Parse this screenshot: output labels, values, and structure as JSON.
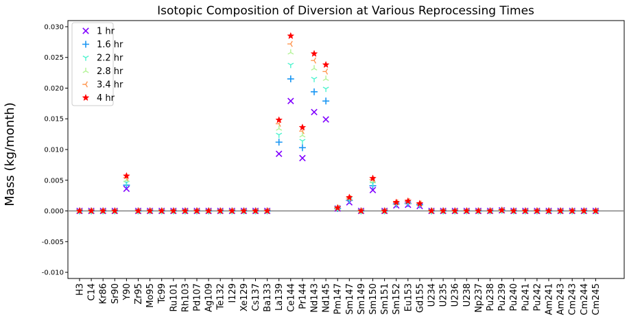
{
  "chart_data": {
    "type": "scatter",
    "title": "Isotopic Composition of Diversion at Various Reprocessing Times",
    "xlabel": "",
    "ylabel": "Mass (kg/month)",
    "ylim": [
      -0.011,
      0.031
    ],
    "yticks": [
      "-0.010",
      "-0.005",
      "0.000",
      "0.005",
      "0.010",
      "0.015",
      "0.020",
      "0.025",
      "0.030"
    ],
    "ytick_values": [
      -0.01,
      -0.005,
      0,
      0.005,
      0.01,
      0.015,
      0.02,
      0.025,
      0.03
    ],
    "zero_line": true,
    "grid": false,
    "legend_position": "upper-left",
    "categories": [
      "H3",
      "C14",
      "Kr86",
      "Sr90",
      "Y90",
      "Zr95",
      "Mo95",
      "Tc99",
      "Ru101",
      "Rh103",
      "Pd107",
      "Ag109",
      "Te132",
      "I129",
      "Xe129",
      "Cs137",
      "Ba133",
      "La139",
      "Ce144",
      "Pr144",
      "Nd143",
      "Nd145",
      "Pm147",
      "Sm147",
      "Sm149",
      "Sm150",
      "Sm151",
      "Sm152",
      "Eu153",
      "Gd155",
      "U234",
      "U235",
      "U236",
      "U238",
      "Np237",
      "Pu238",
      "Pu239",
      "Pu240",
      "Pu241",
      "Pu242",
      "Am241",
      "Am243",
      "Cm243",
      "Cm244",
      "Cm245"
    ],
    "series": [
      {
        "name": "1 hr",
        "marker": "x",
        "color": "#8000ff",
        "values": [
          0,
          0,
          0,
          0,
          0.0036,
          0,
          0,
          0,
          0,
          0,
          0,
          0,
          0,
          0,
          0,
          0,
          0,
          0.0093,
          0.0179,
          0.0086,
          0.0161,
          0.0149,
          0.0004,
          0.0014,
          0,
          0.0034,
          0,
          0.0009,
          0.001,
          0.0008,
          0,
          0,
          0,
          0,
          0,
          0,
          0.0001,
          0,
          0,
          0,
          0,
          0,
          0,
          0,
          0
        ]
      },
      {
        "name": "1.6 hr",
        "marker": "+",
        "color": "#1996f3",
        "values": [
          0,
          0,
          0,
          0,
          0.0042,
          0,
          0,
          0,
          0,
          0,
          0,
          0,
          0,
          0,
          0,
          0,
          0,
          0.0112,
          0.0215,
          0.0103,
          0.0194,
          0.0179,
          0.0004,
          0.0017,
          0,
          0.0041,
          0,
          0.0011,
          0.0012,
          0.001,
          0,
          0,
          0,
          0,
          0,
          0,
          0.0001,
          0,
          0,
          0,
          0,
          0,
          0,
          0,
          0
        ]
      },
      {
        "name": "2.2 hr",
        "marker": "tri-down",
        "color": "#4df3ce",
        "values": [
          0,
          0,
          0,
          0,
          0.0046,
          0,
          0,
          0,
          0,
          0,
          0,
          0,
          0,
          0,
          0,
          0,
          0,
          0.0124,
          0.0238,
          0.0114,
          0.0215,
          0.0199,
          0.0005,
          0.0019,
          0,
          0.0045,
          0,
          0.0012,
          0.0014,
          0.0011,
          0,
          0,
          0,
          0,
          0,
          0,
          0.0001,
          0,
          0,
          0,
          0,
          0,
          0,
          0,
          0
        ]
      },
      {
        "name": "2.8 hr",
        "marker": "tri-up",
        "color": "#b2f396",
        "values": [
          0,
          0,
          0,
          0,
          0.005,
          0,
          0,
          0,
          0,
          0,
          0,
          0,
          0,
          0,
          0,
          0,
          0,
          0.0134,
          0.0258,
          0.0123,
          0.0232,
          0.0215,
          0.0005,
          0.002,
          0,
          0.0048,
          0,
          0.0013,
          0.0015,
          0.0011,
          0,
          0,
          0,
          0,
          0,
          0,
          0.0001,
          0,
          0,
          0,
          0,
          0,
          0,
          0,
          0
        ]
      },
      {
        "name": "3.4 hr",
        "marker": "tri-left",
        "color": "#ff964f",
        "values": [
          0,
          0,
          0,
          0,
          0.0054,
          0,
          0,
          0,
          0,
          0,
          0,
          0,
          0,
          0,
          0,
          0,
          0,
          0.0142,
          0.0272,
          0.013,
          0.0245,
          0.0227,
          0.0005,
          0.0021,
          0,
          0.0051,
          0,
          0.0014,
          0.0016,
          0.0012,
          0,
          0,
          0,
          0,
          0,
          0,
          0.0001,
          0,
          0,
          0,
          0,
          0,
          0,
          0,
          0
        ]
      },
      {
        "name": "4 hr",
        "marker": "star",
        "color": "#ff0000",
        "values": [
          0,
          0,
          0,
          0,
          0.0057,
          0,
          0,
          0,
          0,
          0,
          0,
          0,
          0,
          0,
          0,
          0,
          0,
          0.0148,
          0.0285,
          0.0136,
          0.0256,
          0.0238,
          0.0005,
          0.0022,
          0,
          0.0053,
          0,
          0.0014,
          0.0016,
          0.0012,
          0,
          0,
          0,
          0,
          0,
          0,
          0.0001,
          0,
          0,
          0,
          0,
          0,
          0,
          0,
          0
        ]
      }
    ]
  }
}
